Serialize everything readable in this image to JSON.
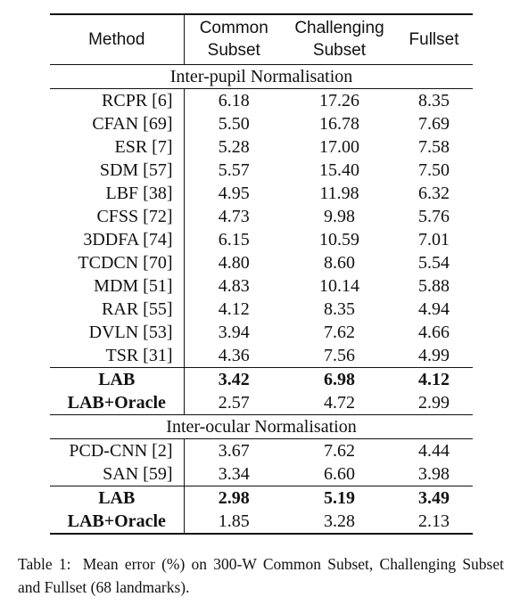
{
  "table": {
    "header": {
      "method": "Method",
      "common_l1": "Common",
      "common_l2": "Subset",
      "chal_l1": "Challenging",
      "chal_l2": "Subset",
      "full": "Fullset"
    },
    "sections": [
      {
        "title": "Inter-pupil Normalisation",
        "rows": [
          {
            "method": "RCPR [6]",
            "common": "6.18",
            "challenging": "17.26",
            "full": "8.35"
          },
          {
            "method": "CFAN [69]",
            "common": "5.50",
            "challenging": "16.78",
            "full": "7.69"
          },
          {
            "method": "ESR [7]",
            "common": "5.28",
            "challenging": "17.00",
            "full": "7.58"
          },
          {
            "method": "SDM [57]",
            "common": "5.57",
            "challenging": "15.40",
            "full": "7.50"
          },
          {
            "method": "LBF [38]",
            "common": "4.95",
            "challenging": "11.98",
            "full": "6.32"
          },
          {
            "method": "CFSS [72]",
            "common": "4.73",
            "challenging": "9.98",
            "full": "5.76"
          },
          {
            "method": "3DDFA [74]",
            "common": "6.15",
            "challenging": "10.59",
            "full": "7.01"
          },
          {
            "method": "TCDCN [70]",
            "common": "4.80",
            "challenging": "8.60",
            "full": "5.54"
          },
          {
            "method": "MDM [51]",
            "common": "4.83",
            "challenging": "10.14",
            "full": "5.88"
          },
          {
            "method": "RAR [55]",
            "common": "4.12",
            "challenging": "8.35",
            "full": "4.94"
          },
          {
            "method": "DVLN [53]",
            "common": "3.94",
            "challenging": "7.62",
            "full": "4.66"
          },
          {
            "method": "TSR [31]",
            "common": "4.36",
            "challenging": "7.56",
            "full": "4.99"
          }
        ],
        "ours": [
          {
            "method": "LAB",
            "common": "3.42",
            "challenging": "6.98",
            "full": "4.12",
            "bold_values": true
          },
          {
            "method": "LAB+Oracle",
            "common": "2.57",
            "challenging": "4.72",
            "full": "2.99",
            "bold_values": false
          }
        ]
      },
      {
        "title": "Inter-ocular Normalisation",
        "rows": [
          {
            "method": "PCD-CNN [2]",
            "common": "3.67",
            "challenging": "7.62",
            "full": "4.44"
          },
          {
            "method": "SAN [59]",
            "common": "3.34",
            "challenging": "6.60",
            "full": "3.98"
          }
        ],
        "ours": [
          {
            "method": "LAB",
            "common": "2.98",
            "challenging": "5.19",
            "full": "3.49",
            "bold_values": true
          },
          {
            "method": "LAB+Oracle",
            "common": "1.85",
            "challenging": "3.28",
            "full": "2.13",
            "bold_values": false
          }
        ]
      }
    ]
  },
  "caption": {
    "label": "Table 1:",
    "text": "Mean error (%) on 300-W Common Subset, Challenging Subset and Fullset (68 landmarks)."
  }
}
